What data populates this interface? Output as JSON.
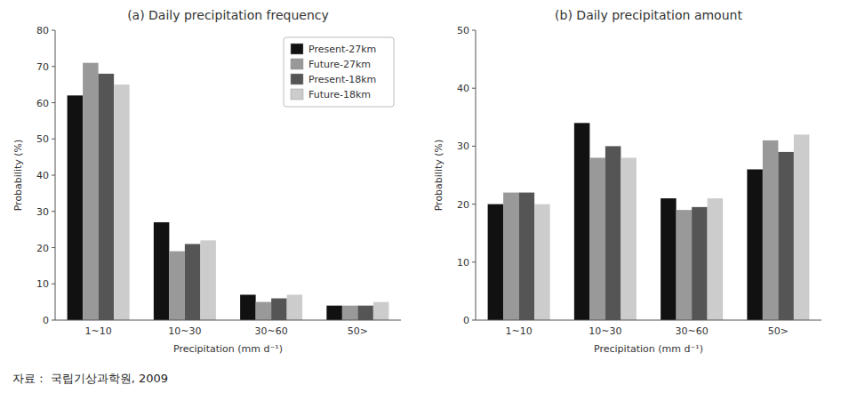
{
  "chart_data": [
    {
      "type": "bar",
      "title": "(a)  Daily precipitation frequency",
      "xlabel": "Precipitation (mm d⁻¹)",
      "ylabel": "Probability (%)",
      "categories": [
        "1~10",
        "10~30",
        "30~60",
        "50>"
      ],
      "series": [
        {
          "name": "Present-27km",
          "color": "#111111",
          "values": [
            62,
            27,
            7,
            4
          ]
        },
        {
          "name": "Future-27km",
          "color": "#999999",
          "values": [
            71,
            19,
            5,
            4
          ]
        },
        {
          "name": "Present-18km",
          "color": "#555555",
          "values": [
            68,
            21,
            6,
            4
          ]
        },
        {
          "name": "Future-18km",
          "color": "#cccccc",
          "values": [
            65,
            22,
            7,
            5
          ]
        }
      ],
      "ylim": [
        0,
        80
      ],
      "yticks": [
        0,
        10,
        20,
        30,
        40,
        50,
        60,
        70,
        80
      ],
      "grid": false,
      "legend": "upper right",
      "annotations": [
        "자료 :  국립기상과학원, 2009"
      ]
    },
    {
      "type": "bar",
      "title": "(b)  Daily precipitation amount",
      "xlabel": "Precipitation (mm d⁻¹)",
      "ylabel": "Probability (%)",
      "categories": [
        "1~10",
        "10~30",
        "30~60",
        "50>"
      ],
      "series": [
        {
          "name": "Present-27km",
          "color": "#111111",
          "values": [
            20,
            34,
            21,
            26
          ]
        },
        {
          "name": "Future-27km",
          "color": "#999999",
          "values": [
            22,
            28,
            19,
            31
          ]
        },
        {
          "name": "Present-18km",
          "color": "#555555",
          "values": [
            22,
            30,
            19.5,
            29
          ]
        },
        {
          "name": "Future-18km",
          "color": "#cccccc",
          "values": [
            20,
            28,
            21,
            32
          ]
        }
      ],
      "ylim": [
        0,
        50
      ],
      "yticks": [
        0,
        10,
        20,
        30,
        40,
        50
      ],
      "grid": false
    }
  ]
}
